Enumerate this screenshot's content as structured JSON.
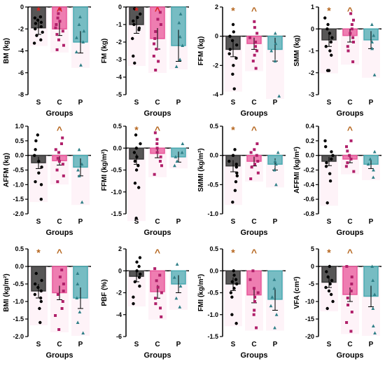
{
  "colors": {
    "S": "#3a3a3a",
    "C": "#e8569a",
    "P": "#4aaab1",
    "star_red": "#e0221e",
    "caret_red": "#e0221e",
    "star_brown": "#b5651d",
    "caret_brown": "#b5651d"
  },
  "chart_data": [
    {
      "type": "bar",
      "ylabel": "BM (kg)",
      "xlabel": "Groups",
      "categories": [
        "S",
        "C",
        "P"
      ],
      "ylim": [
        -8,
        0
      ],
      "yticks": [
        0,
        -2,
        -4,
        -6,
        -8
      ],
      "tick_labels": [
        "0",
        "-2",
        "-4",
        "-6",
        "-8"
      ],
      "values": [
        -1.9,
        -2.0,
        -3.2
      ],
      "errors": [
        0.6,
        0.6,
        1.0
      ],
      "points": [
        [
          -0.9,
          -1.0,
          -1.2,
          -1.4,
          -1.5,
          -1.8,
          -2.0,
          -2.3,
          -2.6,
          -3.0,
          -3.3
        ],
        [
          -0.2,
          -0.6,
          -1.0,
          -1.3,
          -1.6,
          -1.9,
          -2.2,
          -2.5,
          -3.0,
          -3.5,
          -3.9
        ],
        [
          -0.9,
          -1.6,
          -2.2,
          -2.8,
          -3.2,
          -4.1,
          -5.3
        ]
      ],
      "annotations": [
        {
          "symbol": "*",
          "group": "S",
          "color": "red"
        },
        {
          "symbol": "^",
          "group": "C",
          "color": "red"
        }
      ]
    },
    {
      "type": "bar",
      "ylabel": "FM (kg)",
      "xlabel": "Groups",
      "categories": [
        "S",
        "C",
        "P"
      ],
      "ylim": [
        -5,
        0
      ],
      "yticks": [
        0,
        -1,
        -2,
        -3,
        -4,
        -5
      ],
      "tick_labels": [
        "0",
        "-1",
        "-2",
        "-3",
        "-4",
        "-5"
      ],
      "values": [
        -1.0,
        -1.8,
        -2.2
      ],
      "errors": [
        0.5,
        0.6,
        0.9
      ],
      "points": [
        [
          -0.1,
          -0.4,
          -0.6,
          -0.8,
          -1.0,
          -1.2,
          -1.3,
          -1.8,
          -2.8,
          -3.2
        ],
        [
          -0.3,
          -0.7,
          -1.0,
          -1.4,
          -1.8,
          -2.1,
          -2.4,
          -2.8,
          -3.1,
          -3.6
        ],
        [
          -0.4,
          -0.9,
          -1.7,
          -2.2,
          -3.0,
          -3.4
        ]
      ],
      "annotations": [
        {
          "symbol": "*",
          "group": "S",
          "color": "red"
        },
        {
          "symbol": "^",
          "group": "C",
          "color": "red"
        }
      ]
    },
    {
      "type": "bar",
      "ylabel": "FFM (kg)",
      "xlabel": "Groups",
      "categories": [
        "S",
        "C",
        "P"
      ],
      "ylim": [
        -4,
        2
      ],
      "yticks": [
        2,
        0,
        -2,
        -4
      ],
      "tick_labels": [
        "2",
        "0",
        "-2",
        "-4"
      ],
      "values": [
        -0.9,
        -0.5,
        -0.9
      ],
      "errors": [
        0.5,
        0.4,
        0.8
      ],
      "points": [
        [
          0.8,
          0.3,
          0.0,
          -0.3,
          -0.6,
          -0.9,
          -1.2,
          -1.5,
          -2.0,
          -2.6,
          -3.6
        ],
        [
          1.0,
          0.6,
          0.2,
          -0.1,
          -0.4,
          -0.7,
          -1.0,
          -1.3,
          -1.7,
          -2.2
        ],
        [
          0.2,
          -0.5,
          -1.0,
          -1.7,
          -4.1
        ]
      ],
      "annotations": [
        {
          "symbol": "*",
          "group": "S",
          "color": "brown"
        },
        {
          "symbol": "^",
          "group": "C",
          "color": "brown"
        }
      ]
    },
    {
      "type": "bar",
      "ylabel": "SMM (kg)",
      "xlabel": "Groups",
      "categories": [
        "S",
        "C",
        "P"
      ],
      "ylim": [
        -3,
        1
      ],
      "yticks": [
        1,
        0,
        -1,
        -2,
        -3
      ],
      "tick_labels": [
        "1",
        "0",
        "-1",
        "-2",
        "-3"
      ],
      "values": [
        -0.5,
        -0.3,
        -0.5
      ],
      "errors": [
        0.3,
        0.3,
        0.4
      ],
      "points": [
        [
          0.5,
          0.2,
          0.0,
          -0.2,
          -0.4,
          -0.6,
          -0.8,
          -1.0,
          -1.2,
          -1.9,
          -1.9
        ],
        [
          0.7,
          0.4,
          0.2,
          0.0,
          -0.2,
          -0.4,
          -0.6,
          -0.8,
          -1.0,
          -1.5
        ],
        [
          0.2,
          -0.3,
          -0.6,
          -0.9,
          -2.1
        ]
      ],
      "annotations": [
        {
          "symbol": "*",
          "group": "S",
          "color": "brown"
        },
        {
          "symbol": "^",
          "group": "C",
          "color": "brown"
        }
      ]
    },
    {
      "type": "bar",
      "ylabel": "AFFM (kg)",
      "xlabel": "Groups",
      "categories": [
        "S",
        "C",
        "P"
      ],
      "ylim": [
        -2,
        1
      ],
      "yticks": [
        1.0,
        0.5,
        0.0,
        -0.5,
        -1.0,
        -1.5,
        -2.0
      ],
      "tick_labels": [
        "1.0",
        "0.5",
        "0.0",
        "-0.5",
        "-1.0",
        "-1.5",
        "-2.0"
      ],
      "values": [
        -0.25,
        -0.18,
        -0.4
      ],
      "errors": [
        0.2,
        0.15,
        0.3
      ],
      "points": [
        [
          0.7,
          0.5,
          0.2,
          0.0,
          -0.2,
          -0.4,
          -0.6,
          -0.9,
          -1.0,
          -1.5
        ],
        [
          0.6,
          0.4,
          0.2,
          0.1,
          -0.1,
          -0.2,
          -0.3,
          -0.5,
          -0.7,
          -0.9
        ],
        [
          0.2,
          -0.3,
          -0.5,
          -0.7,
          -1.6
        ]
      ],
      "annotations": [
        {
          "symbol": "^",
          "group": "C",
          "color": "brown"
        }
      ]
    },
    {
      "type": "bar",
      "ylabel": "FFMI (kg/m²)",
      "xlabel": "Groups",
      "categories": [
        "S",
        "C",
        "P"
      ],
      "ylim": [
        -1.5,
        0.5
      ],
      "yticks": [
        0.5,
        0.0,
        -0.5,
        -1.0,
        -1.5
      ],
      "tick_labels": [
        "0.5",
        "0.0",
        "-0.5",
        "-1.0",
        "-1.5"
      ],
      "values": [
        -0.25,
        -0.12,
        -0.2
      ],
      "errors": [
        0.12,
        0.1,
        0.12
      ],
      "points": [
        [
          0.3,
          0.1,
          0.0,
          -0.1,
          -0.2,
          -0.3,
          -0.4,
          -0.5,
          -0.8,
          -0.9,
          -1.6
        ],
        [
          0.35,
          0.2,
          0.1,
          0.0,
          -0.1,
          -0.2,
          -0.3,
          -0.4,
          -0.6
        ],
        [
          0.1,
          -0.1,
          -0.2,
          -0.3,
          -0.4
        ]
      ],
      "annotations": [
        {
          "symbol": "*",
          "group": "S",
          "color": "brown"
        },
        {
          "symbol": "^",
          "group": "C",
          "color": "brown"
        }
      ]
    },
    {
      "type": "bar",
      "ylabel": "SMMI (kg/m²)",
      "xlabel": "Groups",
      "categories": [
        "S",
        "C",
        "P"
      ],
      "ylim": [
        -1,
        0.5
      ],
      "yticks": [
        0.5,
        0.0,
        -0.5,
        -1.0
      ],
      "tick_labels": [
        "0.5",
        "0.0",
        "-0.5",
        "-1.0"
      ],
      "values": [
        -0.18,
        -0.1,
        -0.15
      ],
      "errors": [
        0.1,
        0.08,
        0.1
      ],
      "points": [
        [
          0.1,
          0.0,
          -0.1,
          -0.15,
          -0.2,
          -0.3,
          -0.35,
          -0.45,
          -0.6,
          -0.8
        ],
        [
          0.2,
          0.1,
          0.05,
          0.0,
          -0.1,
          -0.15,
          -0.2,
          -0.3,
          -0.4
        ],
        [
          0.05,
          -0.1,
          -0.15,
          -0.25,
          -0.5
        ]
      ],
      "annotations": [
        {
          "symbol": "*",
          "group": "S",
          "color": "brown"
        },
        {
          "symbol": "^",
          "group": "C",
          "color": "brown"
        }
      ]
    },
    {
      "type": "bar",
      "ylabel": "AFFMI (kg/m²)",
      "xlabel": "Groups",
      "categories": [
        "S",
        "C",
        "P"
      ],
      "ylim": [
        -0.8,
        0.4
      ],
      "yticks": [
        0.4,
        0.2,
        0.0,
        -0.2,
        -0.4,
        -0.6,
        -0.8
      ],
      "tick_labels": [
        "0.4",
        "0.2",
        "0.0",
        "-0.2",
        "-0.4",
        "-0.6",
        "-0.8"
      ],
      "values": [
        -0.08,
        -0.05,
        -0.12
      ],
      "errors": [
        0.06,
        0.05,
        0.06
      ],
      "points": [
        [
          0.2,
          0.12,
          0.05,
          0.0,
          -0.05,
          -0.1,
          -0.15,
          -0.25,
          -0.35,
          -0.65
        ],
        [
          0.2,
          0.12,
          0.06,
          0.0,
          -0.05,
          -0.1,
          -0.15,
          -0.22
        ],
        [
          0.05,
          -0.05,
          -0.12,
          -0.2,
          -0.3
        ]
      ],
      "annotations": [
        {
          "symbol": "^",
          "group": "C",
          "color": "brown"
        }
      ]
    },
    {
      "type": "bar",
      "ylabel": "BMI (kg/m²)",
      "xlabel": "Groups",
      "categories": [
        "S",
        "C",
        "P"
      ],
      "ylim": [
        -2,
        0.5
      ],
      "yticks": [
        0.5,
        0.0,
        -0.5,
        -1.0,
        -1.5,
        -2.0
      ],
      "tick_labels": [
        "0.5",
        "0.0",
        "-0.5",
        "-1.0",
        "-1.5",
        "-2.0"
      ],
      "values": [
        -0.7,
        -0.75,
        -0.9
      ],
      "errors": [
        0.2,
        0.2,
        0.3
      ],
      "points": [
        [
          -0.2,
          -0.4,
          -0.5,
          -0.6,
          -0.7,
          -0.8,
          -0.9,
          -1.0,
          -1.2,
          -1.6
        ],
        [
          -0.1,
          -0.3,
          -0.5,
          -0.7,
          -0.8,
          -1.0,
          -1.2,
          -1.4,
          -1.8
        ],
        [
          -0.2,
          -0.5,
          -0.9,
          -1.3,
          -1.6,
          -1.9
        ]
      ],
      "annotations": [
        {
          "symbol": "*",
          "group": "S",
          "color": "brown"
        },
        {
          "symbol": "^",
          "group": "C",
          "color": "brown"
        }
      ]
    },
    {
      "type": "bar",
      "ylabel": "PBF (%)",
      "xlabel": "Groups",
      "categories": [
        "S",
        "C",
        "P"
      ],
      "ylim": [
        -6,
        2
      ],
      "yticks": [
        2,
        0,
        -2,
        -4,
        -6
      ],
      "tick_labels": [
        "2",
        "0",
        "-2",
        "-4",
        "-6"
      ],
      "values": [
        -0.5,
        -1.9,
        -1.2
      ],
      "errors": [
        0.5,
        0.6,
        0.8
      ],
      "points": [
        [
          1.2,
          0.8,
          0.4,
          0.0,
          -0.3,
          -0.6,
          -1.0,
          -1.4,
          -2.4,
          -3.0
        ],
        [
          0.2,
          -0.4,
          -0.9,
          -1.5,
          -2.0,
          -2.5,
          -3.0,
          -3.4,
          -4.2
        ],
        [
          0.6,
          -0.6,
          -1.4,
          -2.5,
          -3.3
        ]
      ],
      "annotations": [
        {
          "symbol": "^",
          "group": "C",
          "color": "brown"
        }
      ]
    },
    {
      "type": "bar",
      "ylabel": "FMI (kg/m²)",
      "xlabel": "Groups",
      "categories": [
        "S",
        "C",
        "P"
      ],
      "ylim": [
        -1.5,
        0.5
      ],
      "yticks": [
        0.5,
        0.0,
        -0.5,
        -1.0,
        -1.5
      ],
      "tick_labels": [
        "0.5",
        "0.0",
        "-0.5",
        "-1.0",
        "-1.5"
      ],
      "values": [
        -0.3,
        -0.55,
        -0.65
      ],
      "errors": [
        0.15,
        0.18,
        0.25
      ],
      "points": [
        [
          0.0,
          -0.1,
          -0.2,
          -0.25,
          -0.3,
          -0.4,
          -0.5,
          -0.6,
          -1.0,
          -1.2
        ],
        [
          0.0,
          -0.2,
          -0.4,
          -0.5,
          -0.6,
          -0.7,
          -0.9,
          -1.0,
          -1.3
        ],
        [
          -0.2,
          -0.4,
          -0.6,
          -0.8,
          -1.0,
          -1.3
        ]
      ],
      "annotations": [
        {
          "symbol": "*",
          "group": "S",
          "color": "brown"
        },
        {
          "symbol": "^",
          "group": "C",
          "color": "brown"
        }
      ]
    },
    {
      "type": "bar",
      "ylabel": "VFA (cm²)",
      "xlabel": "Groups",
      "categories": [
        "S",
        "C",
        "P"
      ],
      "ylim": [
        -20,
        5
      ],
      "yticks": [
        5,
        0,
        -5,
        -10,
        -15,
        -20
      ],
      "tick_labels": [
        "5",
        "0",
        "-5",
        "-10",
        "-15",
        "-20"
      ],
      "values": [
        -4.5,
        -8.0,
        -8.5
      ],
      "errors": [
        1.5,
        2.0,
        3.0
      ],
      "points": [
        [
          0.0,
          -1.5,
          -3.0,
          -4.0,
          -5.0,
          -6.0,
          -7.0,
          -8.0,
          -10.0,
          -12.0
        ],
        [
          0.0,
          -3.0,
          -5.0,
          -7.0,
          -9.0,
          -11.0,
          -13.0,
          -16.0,
          -18.5
        ],
        [
          0.0,
          -4.0,
          -8.0,
          -12.0,
          -17.0,
          -19.0
        ]
      ],
      "annotations": [
        {
          "symbol": "*",
          "group": "S",
          "color": "brown"
        },
        {
          "symbol": "^",
          "group": "C",
          "color": "brown"
        }
      ]
    }
  ]
}
